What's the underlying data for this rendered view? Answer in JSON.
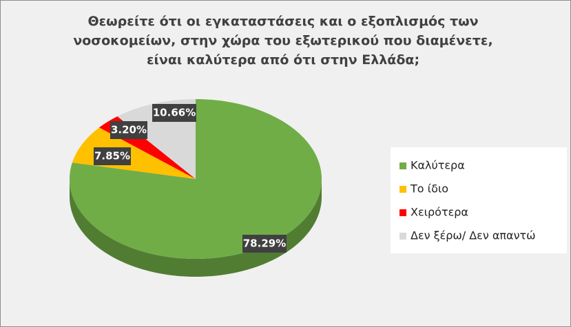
{
  "chart_data": {
    "type": "pie3d",
    "title": "Θεωρείτε ότι οι εγκαταστάσεις και ο εξοπλισμός των νοσοκομείων, στην χώρα του εξωτερικού που διαμένετε, είναι καλύτερα από ότι στην Ελλάδα;",
    "categories": [
      "Καλύτερα",
      "Το ίδιο",
      "Χειρότερα",
      "Δεν ξέρω/ Δεν απαντώ"
    ],
    "values": [
      78.29,
      7.85,
      3.2,
      10.66
    ],
    "value_labels": [
      "78.29%",
      "7.85%",
      "3.20%",
      "10.66%"
    ],
    "colors": [
      "#70ad47",
      "#ffc000",
      "#ff0000",
      "#d9d9d9"
    ],
    "legend": "right"
  }
}
